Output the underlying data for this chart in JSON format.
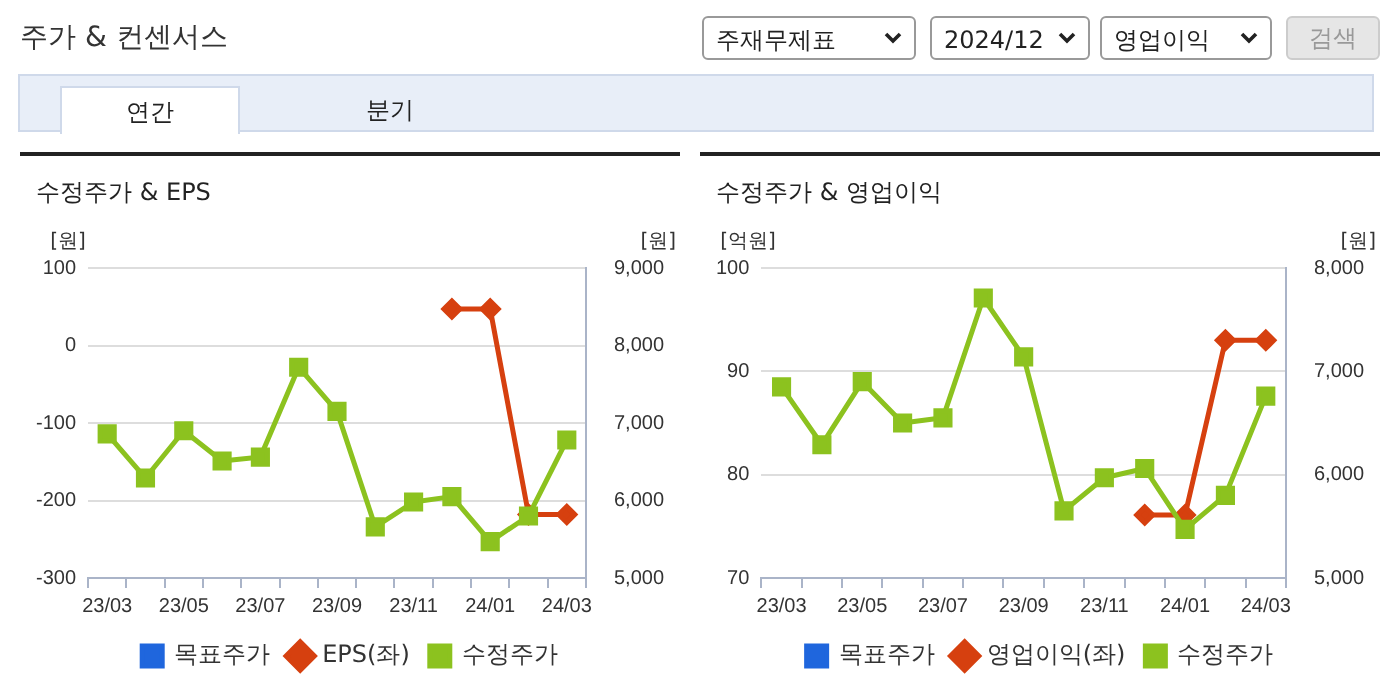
{
  "chart_data": [
    {
      "type": "other",
      "title": "주가 & 컨센서스",
      "annotations": [
        "주재무제표",
        "2024/12",
        "영업이익",
        "검색",
        "연간",
        "분기"
      ]
    },
    {
      "type": "line",
      "title": "수정주가 & EPS",
      "ylabel": "[원]",
      "y2label": "[원]",
      "categories": [
        "23/03",
        null,
        "23/05",
        null,
        "23/07",
        null,
        "23/09",
        null,
        "23/11",
        null,
        "24/01",
        null,
        "24/03"
      ],
      "series": [
        {
          "name": "목표주가",
          "color": "#1f66dd",
          "marker": "square",
          "values": [
            null,
            null,
            null,
            null,
            null,
            null,
            null,
            null,
            null,
            null,
            null,
            null,
            null
          ]
        },
        {
          "name": "EPS(좌)",
          "color": "#d6400f",
          "marker": "diamond",
          "values": [
            null,
            null,
            null,
            null,
            null,
            null,
            null,
            null,
            null,
            47,
            47,
            -218,
            -218
          ]
        },
        {
          "name": "수정주가",
          "color": "#8cc21f",
          "marker": "square",
          "axis": "y2",
          "values": [
            6860,
            6290,
            6900,
            6510,
            6560,
            7720,
            7150,
            5660,
            5980,
            6050,
            5470,
            5800,
            6780
          ]
        }
      ],
      "ylim": [
        -300,
        100
      ],
      "yticks": [
        -300,
        -200,
        -100,
        0,
        100
      ],
      "y2lim": [
        5000,
        9000
      ],
      "y2ticks": [
        {
          "value": 5000,
          "label": "5,000"
        },
        {
          "value": 6000,
          "label": "6,000"
        },
        {
          "value": 7000,
          "label": "7,000"
        },
        {
          "value": 8000,
          "label": "8,000"
        },
        {
          "value": 9000,
          "label": "9,000"
        }
      ],
      "grid": "y",
      "legend": "bottom"
    },
    {
      "type": "line",
      "title": "수정주가 & 영업이익",
      "ylabel": "[억원]",
      "y2label": "[원]",
      "categories": [
        "23/03",
        null,
        "23/05",
        null,
        "23/07",
        null,
        "23/09",
        null,
        "23/11",
        null,
        "24/01",
        null,
        "24/03"
      ],
      "series": [
        {
          "name": "목표주가",
          "color": "#1f66dd",
          "marker": "square",
          "values": [
            null,
            null,
            null,
            null,
            null,
            null,
            null,
            null,
            null,
            null,
            null,
            null,
            null
          ]
        },
        {
          "name": "영업이익(좌)",
          "color": "#d6400f",
          "marker": "diamond",
          "values": [
            null,
            null,
            null,
            null,
            null,
            null,
            null,
            null,
            null,
            76.1,
            76.1,
            93,
            93
          ]
        },
        {
          "name": "수정주가",
          "color": "#8cc21f",
          "marker": "square",
          "axis": "y2",
          "values": [
            6850,
            6290,
            6900,
            6500,
            6550,
            7710,
            7140,
            5650,
            5970,
            6060,
            5470,
            5800,
            6760
          ]
        }
      ],
      "ylim": [
        70,
        100
      ],
      "yticks": [
        70,
        80,
        90,
        100
      ],
      "y2lim": [
        5000,
        8000
      ],
      "y2ticks": [
        {
          "value": 5000,
          "label": "5,000"
        },
        {
          "value": 6000,
          "label": "6,000"
        },
        {
          "value": 7000,
          "label": "7,000"
        },
        {
          "value": 8000,
          "label": "8,000"
        }
      ],
      "grid": "y",
      "legend": "bottom"
    }
  ]
}
